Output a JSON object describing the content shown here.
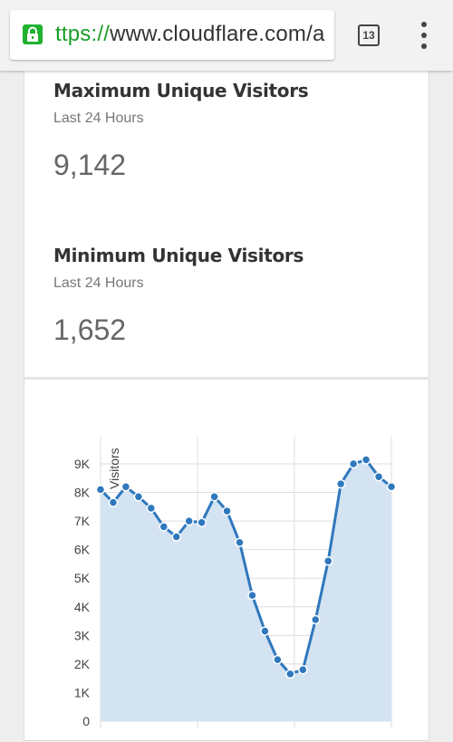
{
  "browser": {
    "url_scheme": "ttps://",
    "url_rest": "www.cloudflare.com/a",
    "tab_count": "13"
  },
  "stats": {
    "max": {
      "title": "Maximum Unique Visitors",
      "subtitle": "Last 24 Hours",
      "value": "9,142"
    },
    "min": {
      "title": "Minimum Unique Visitors",
      "subtitle": "Last 24 Hours",
      "value": "1,652"
    }
  },
  "colors": {
    "accent": "#2f78bd",
    "fill": "#d3e3f2",
    "lock": "#1fb12f"
  },
  "chart_data": {
    "type": "area",
    "ylabel": "Visitors",
    "ylim": [
      0,
      9000
    ],
    "yticks": [
      0,
      1000,
      2000,
      3000,
      4000,
      5000,
      6000,
      7000,
      8000,
      9000
    ],
    "ytick_labels": [
      "0",
      "1K",
      "2K",
      "3K",
      "4K",
      "5K",
      "6K",
      "7K",
      "8K",
      "9K"
    ],
    "grid": true,
    "series": [
      {
        "values": [
          8100,
          7650,
          8200,
          7850,
          7450,
          6800,
          6450,
          7000,
          6950,
          7850,
          7350,
          6250,
          4400,
          3150,
          2150,
          1652,
          1800,
          3550,
          5600,
          8300,
          9000,
          9142,
          8550,
          8200
        ]
      }
    ]
  }
}
